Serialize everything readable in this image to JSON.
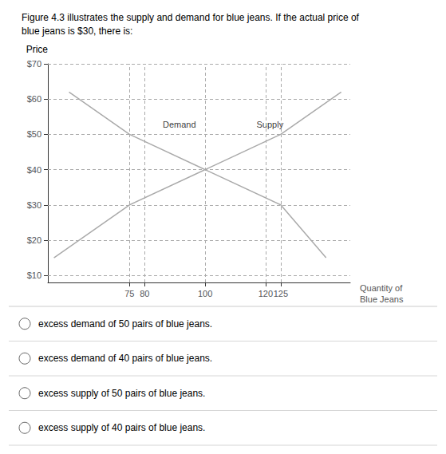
{
  "chart_data": {
    "type": "line",
    "title": "Figure 4.3 illustrates the supply and demand for blue jeans. If the actual price of\nblue jeans is $30, there is:",
    "x_label": "Quantity of\nBlue Jeans",
    "y_label": "Price",
    "series": [
      {
        "x": [
          140,
          125,
          100,
          75,
          55
        ],
        "values": [
          15,
          30,
          40,
          50,
          62
        ],
        "color": "#aaaaaa"
      },
      {
        "x": [
          50,
          75,
          100,
          125,
          145
        ],
        "values": [
          15,
          30,
          40,
          50,
          62
        ],
        "color": "#aaaaaa"
      }
    ],
    "xlim": [
      48,
      148
    ],
    "xticks": [
      75,
      80,
      100,
      120,
      125
    ],
    "ylim": [
      8,
      70
    ],
    "yticks": [
      {
        "value": 10,
        "label": "$10"
      },
      {
        "value": 20,
        "label": "$20"
      },
      {
        "value": 30,
        "label": "$30"
      },
      {
        "value": 40,
        "label": "$40"
      },
      {
        "value": 50,
        "label": "$50"
      },
      {
        "value": 60,
        "label": "$60"
      },
      {
        "value": 70,
        "label": "$70"
      }
    ],
    "grid": true,
    "annotations": [
      {
        "text": "Demand",
        "x": 86,
        "y": 51.5
      },
      {
        "text": "Supply",
        "x": 117,
        "y": 51.5
      }
    ],
    "choices": [
      "excess demand of 50 pairs of blue jeans.",
      "excess demand of 40 pairs of blue jeans.",
      "excess supply of 50 pairs of blue jeans.",
      "excess supply of 40 pairs of blue jeans."
    ]
  }
}
